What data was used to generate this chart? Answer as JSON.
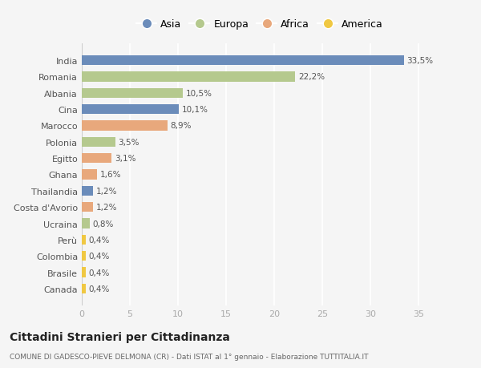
{
  "countries": [
    "India",
    "Romania",
    "Albania",
    "Cina",
    "Marocco",
    "Polonia",
    "Egitto",
    "Ghana",
    "Thailandia",
    "Costa d'Avorio",
    "Ucraina",
    "Perù",
    "Colombia",
    "Brasile",
    "Canada"
  ],
  "values": [
    33.5,
    22.2,
    10.5,
    10.1,
    8.9,
    3.5,
    3.1,
    1.6,
    1.2,
    1.2,
    0.8,
    0.4,
    0.4,
    0.4,
    0.4
  ],
  "labels": [
    "33,5%",
    "22,2%",
    "10,5%",
    "10,1%",
    "8,9%",
    "3,5%",
    "3,1%",
    "1,6%",
    "1,2%",
    "1,2%",
    "0,8%",
    "0,4%",
    "0,4%",
    "0,4%",
    "0,4%"
  ],
  "continents": [
    "Asia",
    "Europa",
    "Europa",
    "Asia",
    "Africa",
    "Europa",
    "Africa",
    "Africa",
    "Asia",
    "Africa",
    "Europa",
    "America",
    "America",
    "America",
    "America"
  ],
  "continent_colors": {
    "Asia": "#6b8cba",
    "Europa": "#b5c98e",
    "Africa": "#e8a87c",
    "America": "#f0c842"
  },
  "legend_order": [
    "Asia",
    "Europa",
    "Africa",
    "America"
  ],
  "title": "Cittadini Stranieri per Cittadinanza",
  "subtitle": "COMUNE DI GADESCO-PIEVE DELMONA (CR) - Dati ISTAT al 1° gennaio - Elaborazione TUTTITALIA.IT",
  "xlim": [
    0,
    37
  ],
  "xticks": [
    0,
    5,
    10,
    15,
    20,
    25,
    30,
    35
  ],
  "bg_color": "#f5f5f5",
  "grid_color": "#ffffff",
  "bar_height": 0.6
}
